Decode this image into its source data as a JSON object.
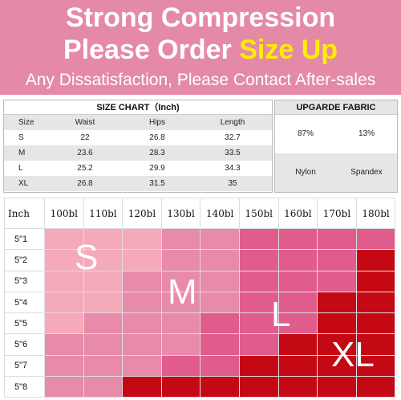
{
  "header": {
    "line1": "Strong Compression",
    "line2_prefix": "Please Order ",
    "line2_highlight": "Size Up",
    "line3": "Any Dissatisfaction, Please Contact After-sales",
    "colors": {
      "background": "#e58aa6",
      "text": "#ffffff",
      "highlight": "#ffee00"
    }
  },
  "size_chart": {
    "title": "SIZE CHART（Inch)",
    "columns": [
      "Size",
      "Waist",
      "Hips",
      "Length"
    ],
    "rows": [
      [
        "S",
        "22",
        "26.8",
        "32.7"
      ],
      [
        "M",
        "23.6",
        "28.3",
        "33.5"
      ],
      [
        "L",
        "25.2",
        "29.9",
        "34.3"
      ],
      [
        "XL",
        "26.8",
        "31.5",
        "35"
      ]
    ]
  },
  "fabric": {
    "title": "UPGARDE FABRIC",
    "percents": [
      "87%",
      "13%"
    ],
    "materials": [
      "Nylon",
      "Spandex"
    ]
  },
  "grid": {
    "corner_label": "Inch",
    "weights": [
      "100bl",
      "110bl",
      "120bl",
      "130bl",
      "140bl",
      "150bl",
      "160bl",
      "170bl",
      "180bl"
    ],
    "heights": [
      "5\"1",
      "5\"2",
      "5\"3",
      "5\"4",
      "5\"5",
      "5\"6",
      "5\"7",
      "5\"8"
    ],
    "cells": [
      [
        "S",
        "S",
        "S",
        "M",
        "M",
        "L",
        "L",
        "L",
        "L"
      ],
      [
        "S",
        "S",
        "S",
        "M",
        "M",
        "L",
        "L",
        "L",
        "XL"
      ],
      [
        "S",
        "S",
        "M",
        "M",
        "M",
        "L",
        "L",
        "L",
        "XL"
      ],
      [
        "S",
        "S",
        "M",
        "M",
        "M",
        "L",
        "L",
        "XL",
        "XL"
      ],
      [
        "S",
        "M",
        "M",
        "M",
        "L",
        "L",
        "L",
        "XL",
        "XL"
      ],
      [
        "M",
        "M",
        "M",
        "M",
        "L",
        "L",
        "XL",
        "XL",
        "XL"
      ],
      [
        "M",
        "M",
        "M",
        "L",
        "L",
        "XL",
        "XL",
        "XL",
        "XL"
      ],
      [
        "M",
        "M",
        "XL",
        "XL",
        "XL",
        "XL",
        "XL",
        "XL",
        "XL"
      ]
    ],
    "size_colors": {
      "S": "#f5aab9",
      "M": "#e88aaa",
      "L": "#e05c8d",
      "XL": "#c50914"
    },
    "overlay_labels": {
      "s": "S",
      "m": "M",
      "l": "L",
      "xl": "XL"
    }
  }
}
